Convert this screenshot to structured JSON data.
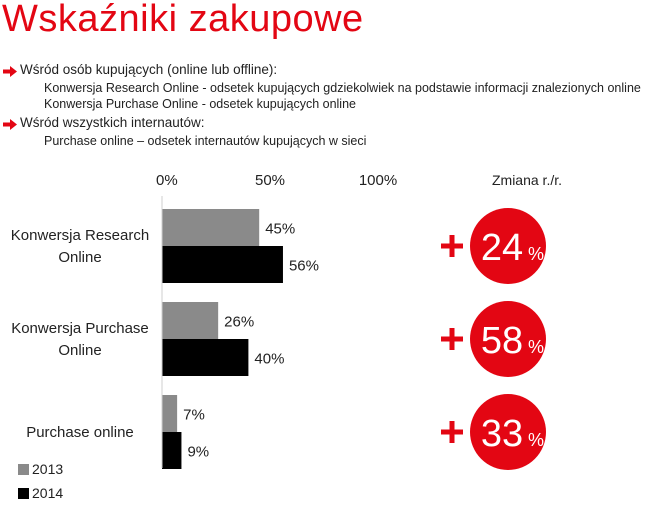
{
  "header": {
    "title": "Wskaźniki zakupowe",
    "bullets": [
      {
        "text": "Wśród osób kupujących (online lub offline):",
        "sub": [
          "Konwersja Research Online - odsetek kupujących gdziekolwiek na podstawie informacji znalezionych online",
          "Konwersja Purchase Online - odsetek kupujących online"
        ]
      },
      {
        "text": "Wśród wszystkich internautów:",
        "sub": [
          "Purchase online – odsetek internautów kupujących w sieci"
        ]
      }
    ],
    "bullet_icon": "arrow-right-icon"
  },
  "chart_data": {
    "type": "bar",
    "orientation": "horizontal",
    "categories": [
      "Konwersja Research Online",
      "Konwersja Purchase Online",
      "Purchase online"
    ],
    "category_lines": [
      [
        "Konwersja Research",
        "Online"
      ],
      [
        "Konwersja Purchase",
        "Online"
      ],
      [
        "Purchase online"
      ]
    ],
    "series": [
      {
        "name": "2013",
        "values": [
          45,
          26,
          7
        ],
        "labels": [
          "45%",
          "26%",
          "7%"
        ],
        "color": "#8a8a8a"
      },
      {
        "name": "2014",
        "values": [
          56,
          40,
          9
        ],
        "labels": [
          "56%",
          "40%",
          "9%"
        ],
        "color": "#000000"
      }
    ],
    "xlim": [
      0,
      100
    ],
    "xticks": [
      0,
      50,
      100
    ],
    "xtick_labels": [
      "0%",
      "50%",
      "100%"
    ],
    "grid": false,
    "legend": {
      "position": "bottom-left",
      "entries": [
        "2013",
        "2014"
      ]
    },
    "change": {
      "header": "Zmiana r./r.",
      "values": [
        "24",
        "58",
        "33"
      ],
      "unit": "%",
      "sign": "+",
      "color": "#e30613"
    }
  }
}
